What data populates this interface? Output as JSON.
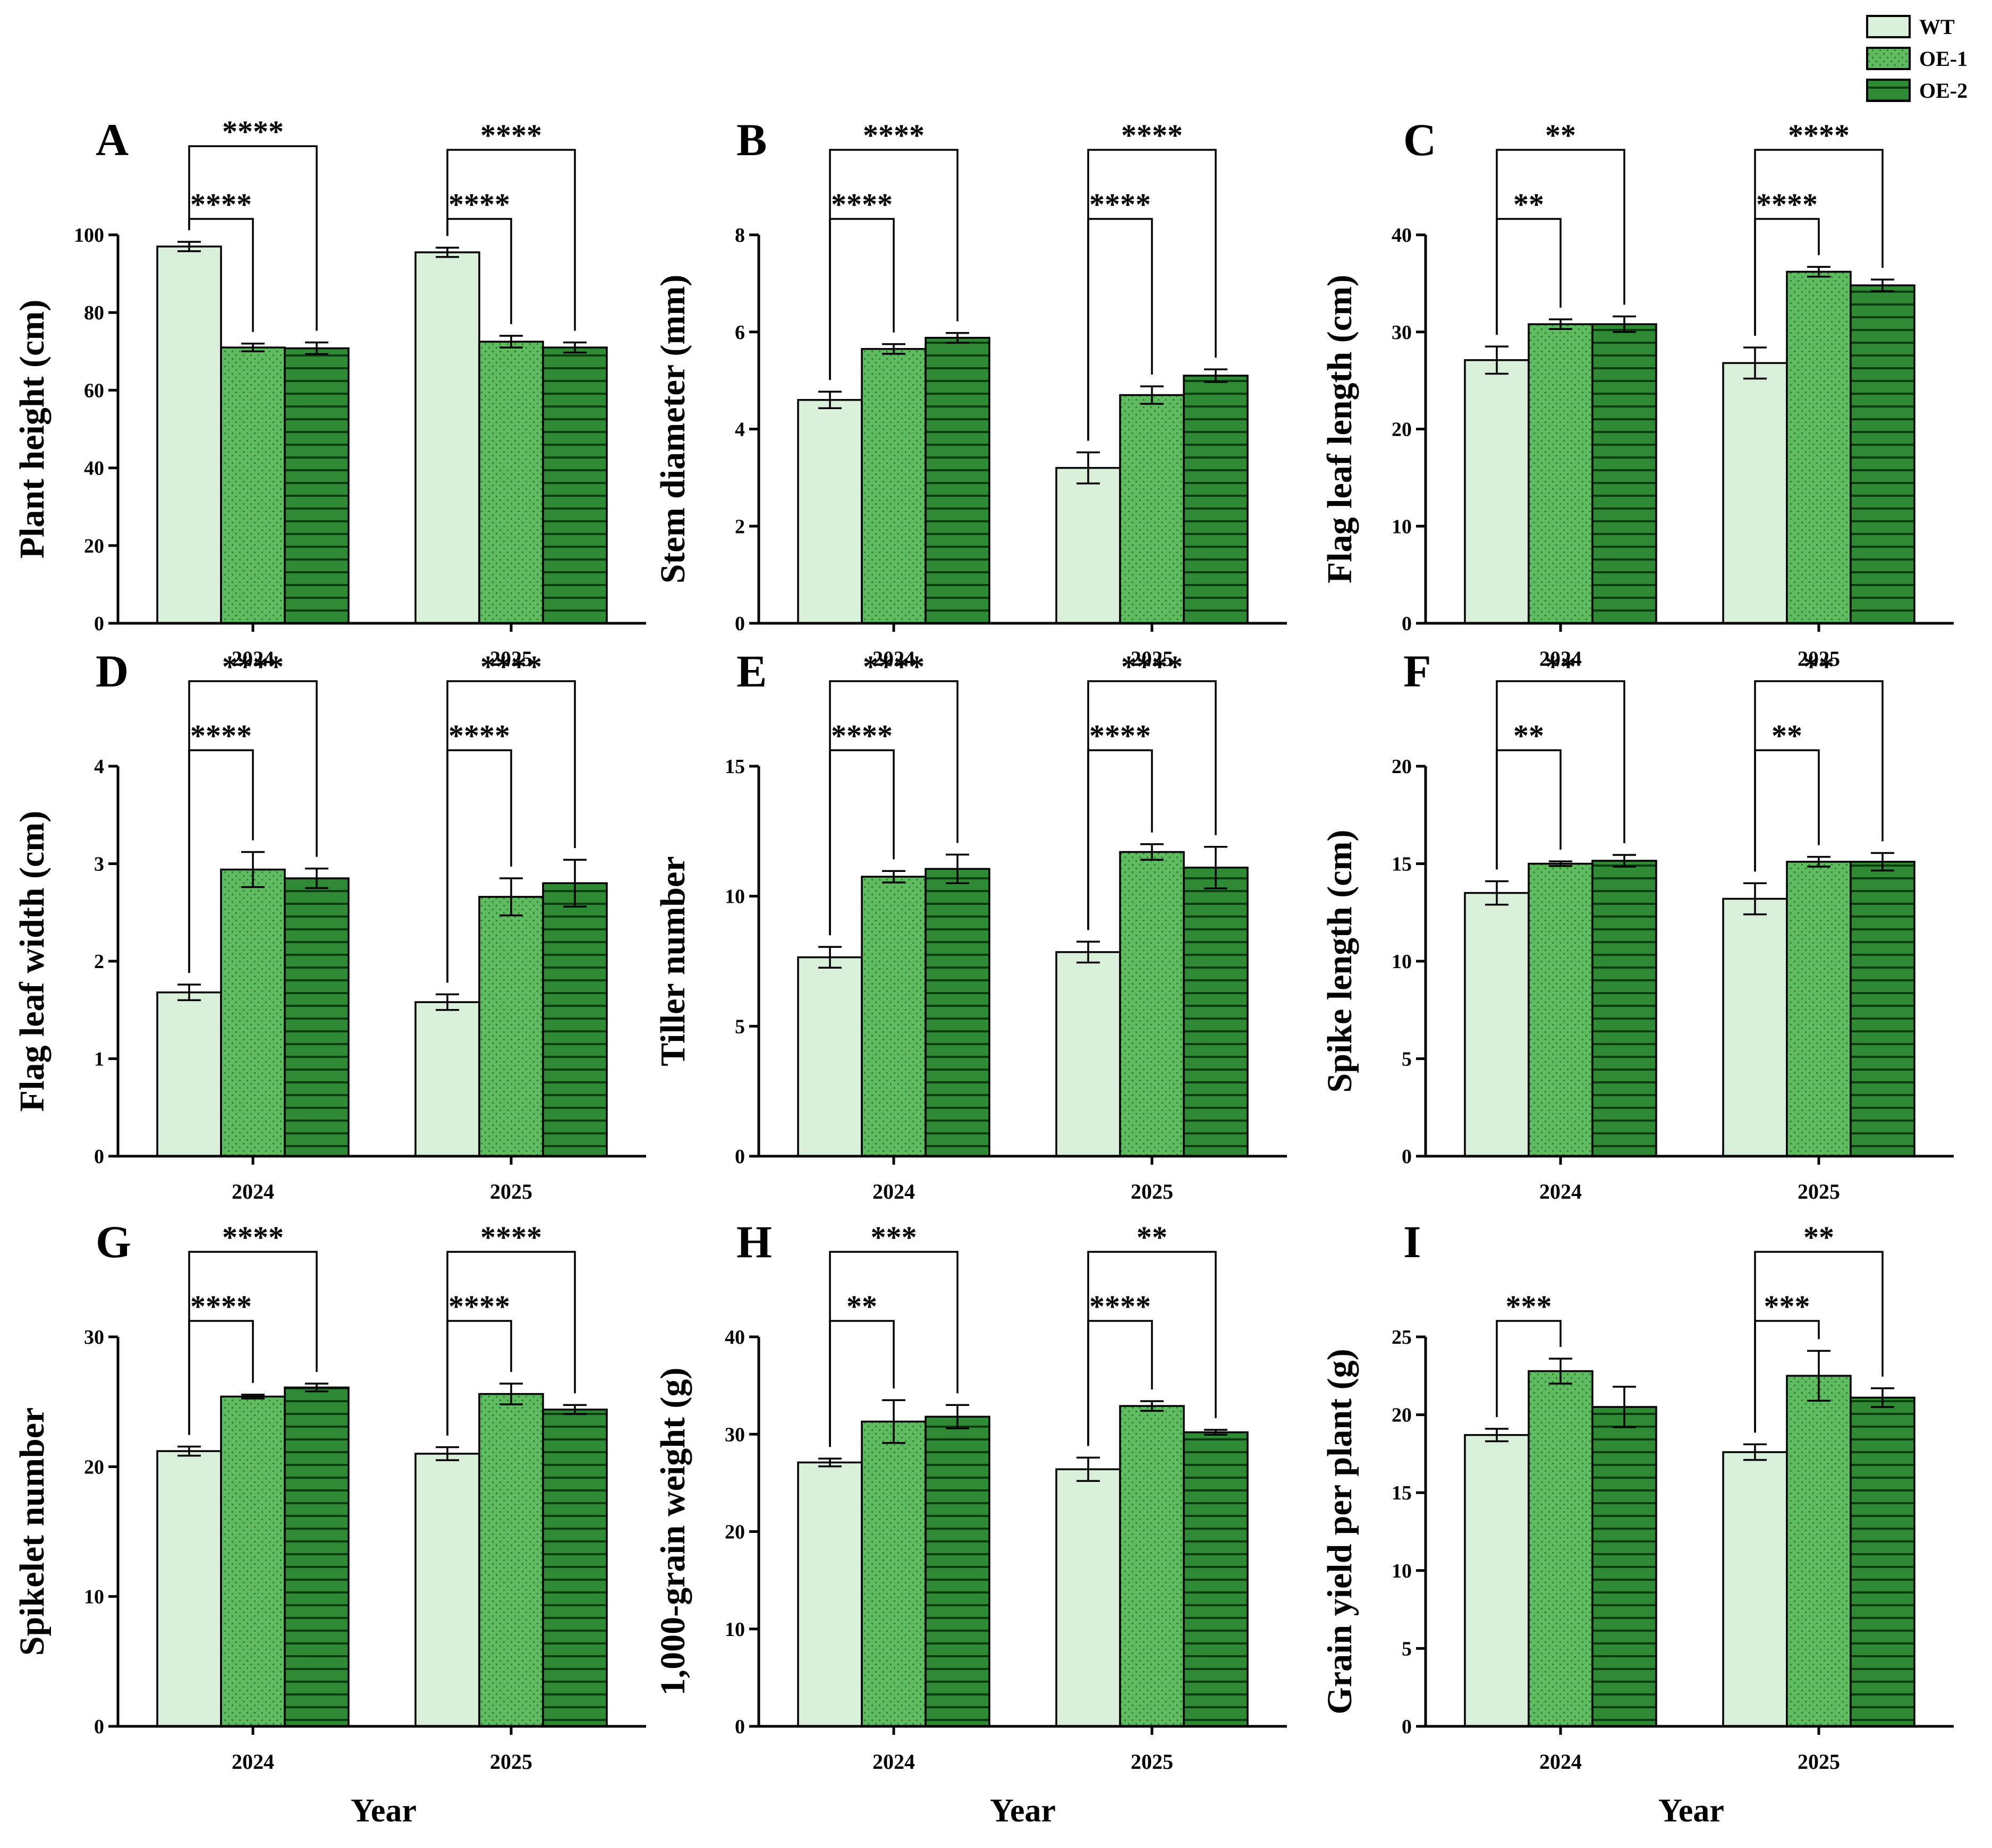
{
  "legend": [
    {
      "label": "WT",
      "color": "#d9efda",
      "pattern": "plain"
    },
    {
      "label": "OE-1",
      "color": "#5fbb5f",
      "pattern": "dots"
    },
    {
      "label": "OE-2",
      "color": "#2e8a33",
      "pattern": "hlines"
    }
  ],
  "x_axis_label": "Year",
  "chart_data": [
    {
      "panel": "A",
      "type": "bar",
      "ylabel": "Plant height (cm)",
      "ylim": [
        0,
        100
      ],
      "yticks": [
        0,
        20,
        40,
        60,
        80,
        100
      ],
      "ytick_labels": [
        "0",
        "20",
        "40",
        "60",
        "80",
        "100"
      ],
      "categories": [
        "2024",
        "2025"
      ],
      "series": [
        {
          "name": "WT",
          "values": [
            97,
            95.5
          ],
          "errors": [
            1.2,
            1.2
          ]
        },
        {
          "name": "OE-1",
          "values": [
            71,
            72.5
          ],
          "errors": [
            1,
            1.5
          ]
        },
        {
          "name": "OE-2",
          "values": [
            70.8,
            71
          ],
          "errors": [
            1.5,
            1.3
          ]
        }
      ],
      "sig": [
        {
          "cat": 0,
          "from": 0,
          "to": 1,
          "label": "****",
          "level": 0
        },
        {
          "cat": 0,
          "from": 0,
          "to": 2,
          "label": "****",
          "level": 1
        },
        {
          "cat": 1,
          "from": 0,
          "to": 1,
          "label": "****",
          "level": 0
        },
        {
          "cat": 1,
          "from": 0,
          "to": 2,
          "label": "****",
          "level": 1
        }
      ]
    },
    {
      "panel": "B",
      "type": "bar",
      "ylabel": "Stem diameter (mm)",
      "ylim": [
        0,
        8
      ],
      "yticks": [
        0,
        2,
        4,
        6,
        8
      ],
      "ytick_labels": [
        "0",
        "2",
        "4",
        "6",
        "8"
      ],
      "categories": [
        "2024",
        "2025"
      ],
      "series": [
        {
          "name": "WT",
          "values": [
            4.6,
            3.2
          ],
          "errors": [
            0.17,
            0.32
          ]
        },
        {
          "name": "OE-1",
          "values": [
            5.65,
            4.7
          ],
          "errors": [
            0.1,
            0.18
          ]
        },
        {
          "name": "OE-2",
          "values": [
            5.88,
            5.1
          ],
          "errors": [
            0.1,
            0.13
          ]
        }
      ],
      "sig": [
        {
          "cat": 0,
          "from": 0,
          "to": 1,
          "label": "****",
          "level": 0
        },
        {
          "cat": 0,
          "from": 0,
          "to": 2,
          "label": "****",
          "level": 1
        },
        {
          "cat": 1,
          "from": 0,
          "to": 1,
          "label": "****",
          "level": 0
        },
        {
          "cat": 1,
          "from": 0,
          "to": 2,
          "label": "****",
          "level": 1
        }
      ]
    },
    {
      "panel": "C",
      "type": "bar",
      "ylabel": "Flag leaf length (cm)",
      "ylim": [
        0,
        40
      ],
      "yticks": [
        0,
        10,
        20,
        30,
        40
      ],
      "ytick_labels": [
        "0",
        "10",
        "20",
        "30",
        "40"
      ],
      "categories": [
        "2024",
        "2025"
      ],
      "series": [
        {
          "name": "WT",
          "values": [
            27.1,
            26.8
          ],
          "errors": [
            1.4,
            1.6
          ]
        },
        {
          "name": "OE-1",
          "values": [
            30.8,
            36.2
          ],
          "errors": [
            0.5,
            0.5
          ]
        },
        {
          "name": "OE-2",
          "values": [
            30.8,
            34.8
          ],
          "errors": [
            0.8,
            0.6
          ]
        }
      ],
      "sig": [
        {
          "cat": 0,
          "from": 0,
          "to": 1,
          "label": "**",
          "level": 0
        },
        {
          "cat": 0,
          "from": 0,
          "to": 2,
          "label": "**",
          "level": 1
        },
        {
          "cat": 1,
          "from": 0,
          "to": 1,
          "label": "****",
          "level": 0
        },
        {
          "cat": 1,
          "from": 0,
          "to": 2,
          "label": "****",
          "level": 1
        }
      ]
    },
    {
      "panel": "D",
      "type": "bar",
      "ylabel": "Flag leaf width (cm)",
      "ylim": [
        0,
        4
      ],
      "yticks": [
        0,
        1,
        2,
        3,
        4
      ],
      "ytick_labels": [
        "0",
        "1",
        "2",
        "3",
        "4"
      ],
      "categories": [
        "2024",
        "2025"
      ],
      "series": [
        {
          "name": "WT",
          "values": [
            1.68,
            1.58
          ],
          "errors": [
            0.08,
            0.08
          ]
        },
        {
          "name": "OE-1",
          "values": [
            2.94,
            2.66
          ],
          "errors": [
            0.18,
            0.19
          ]
        },
        {
          "name": "OE-2",
          "values": [
            2.85,
            2.8
          ],
          "errors": [
            0.1,
            0.24
          ]
        }
      ],
      "sig": [
        {
          "cat": 0,
          "from": 0,
          "to": 1,
          "label": "****",
          "level": 0
        },
        {
          "cat": 0,
          "from": 0,
          "to": 2,
          "label": "****",
          "level": 1
        },
        {
          "cat": 1,
          "from": 0,
          "to": 1,
          "label": "****",
          "level": 0
        },
        {
          "cat": 1,
          "from": 0,
          "to": 2,
          "label": "****",
          "level": 1
        }
      ]
    },
    {
      "panel": "E",
      "type": "bar",
      "ylabel": "Tiller number",
      "ylim": [
        0,
        15
      ],
      "yticks": [
        0,
        5,
        10,
        15
      ],
      "ytick_labels": [
        "0",
        "5",
        "10",
        "15"
      ],
      "categories": [
        "2024",
        "2025"
      ],
      "series": [
        {
          "name": "WT",
          "values": [
            7.65,
            7.85
          ],
          "errors": [
            0.4,
            0.4
          ]
        },
        {
          "name": "OE-1",
          "values": [
            10.75,
            11.7
          ],
          "errors": [
            0.22,
            0.3
          ]
        },
        {
          "name": "OE-2",
          "values": [
            11.05,
            11.1
          ],
          "errors": [
            0.55,
            0.8
          ]
        }
      ],
      "sig": [
        {
          "cat": 0,
          "from": 0,
          "to": 1,
          "label": "****",
          "level": 0
        },
        {
          "cat": 0,
          "from": 0,
          "to": 2,
          "label": "****",
          "level": 1
        },
        {
          "cat": 1,
          "from": 0,
          "to": 1,
          "label": "****",
          "level": 0
        },
        {
          "cat": 1,
          "from": 0,
          "to": 2,
          "label": "****",
          "level": 1
        }
      ]
    },
    {
      "panel": "F",
      "type": "bar",
      "ylabel": "Spike length (cm)",
      "ylim": [
        0,
        20
      ],
      "yticks": [
        0,
        5,
        10,
        15,
        20
      ],
      "ytick_labels": [
        "0",
        "5",
        "10",
        "15",
        "20"
      ],
      "categories": [
        "2024",
        "2025"
      ],
      "series": [
        {
          "name": "WT",
          "values": [
            13.5,
            13.2
          ],
          "errors": [
            0.6,
            0.8
          ]
        },
        {
          "name": "OE-1",
          "values": [
            15.0,
            15.1
          ],
          "errors": [
            0.12,
            0.25
          ]
        },
        {
          "name": "OE-2",
          "values": [
            15.15,
            15.1
          ],
          "errors": [
            0.3,
            0.45
          ]
        }
      ],
      "sig": [
        {
          "cat": 0,
          "from": 0,
          "to": 1,
          "label": "**",
          "level": 0
        },
        {
          "cat": 0,
          "from": 0,
          "to": 2,
          "label": "**",
          "level": 1
        },
        {
          "cat": 1,
          "from": 0,
          "to": 1,
          "label": "**",
          "level": 0
        },
        {
          "cat": 1,
          "from": 0,
          "to": 2,
          "label": "**",
          "level": 1
        }
      ]
    },
    {
      "panel": "G",
      "type": "bar",
      "ylabel": "Spikelet number",
      "ylim": [
        0,
        30
      ],
      "yticks": [
        0,
        10,
        20,
        30
      ],
      "ytick_labels": [
        "0",
        "10",
        "20",
        "30"
      ],
      "categories": [
        "2024",
        "2025"
      ],
      "series": [
        {
          "name": "WT",
          "values": [
            21.2,
            21.0
          ],
          "errors": [
            0.35,
            0.5
          ]
        },
        {
          "name": "OE-1",
          "values": [
            25.4,
            25.6
          ],
          "errors": [
            0.15,
            0.8
          ]
        },
        {
          "name": "OE-2",
          "values": [
            26.1,
            24.4
          ],
          "errors": [
            0.3,
            0.35
          ]
        }
      ],
      "sig": [
        {
          "cat": 0,
          "from": 0,
          "to": 1,
          "label": "****",
          "level": 0
        },
        {
          "cat": 0,
          "from": 0,
          "to": 2,
          "label": "****",
          "level": 1
        },
        {
          "cat": 1,
          "from": 0,
          "to": 1,
          "label": "****",
          "level": 0
        },
        {
          "cat": 1,
          "from": 0,
          "to": 2,
          "label": "****",
          "level": 1
        }
      ]
    },
    {
      "panel": "H",
      "type": "bar",
      "ylabel": "1,000-grain weight (g)",
      "ylim": [
        0,
        40
      ],
      "yticks": [
        0,
        10,
        20,
        30,
        40
      ],
      "ytick_labels": [
        "0",
        "10",
        "20",
        "30",
        "40"
      ],
      "categories": [
        "2024",
        "2025"
      ],
      "series": [
        {
          "name": "WT",
          "values": [
            27.1,
            26.4
          ],
          "errors": [
            0.4,
            1.2
          ]
        },
        {
          "name": "OE-1",
          "values": [
            31.3,
            32.9
          ],
          "errors": [
            2.2,
            0.5
          ]
        },
        {
          "name": "OE-2",
          "values": [
            31.8,
            30.2
          ],
          "errors": [
            1.2,
            0.25
          ]
        }
      ],
      "sig": [
        {
          "cat": 0,
          "from": 0,
          "to": 1,
          "label": "**",
          "level": 0
        },
        {
          "cat": 0,
          "from": 0,
          "to": 2,
          "label": "***",
          "level": 1
        },
        {
          "cat": 1,
          "from": 0,
          "to": 1,
          "label": "****",
          "level": 0
        },
        {
          "cat": 1,
          "from": 0,
          "to": 2,
          "label": "**",
          "level": 1
        }
      ]
    },
    {
      "panel": "I",
      "type": "bar",
      "ylabel": "Grain yield per plant (g)",
      "ylim": [
        0,
        25
      ],
      "yticks": [
        0,
        5,
        10,
        15,
        20,
        25
      ],
      "ytick_labels": [
        "0",
        "5",
        "10",
        "15",
        "20",
        "25"
      ],
      "categories": [
        "2024",
        "2025"
      ],
      "series": [
        {
          "name": "WT",
          "values": [
            18.7,
            17.6
          ],
          "errors": [
            0.4,
            0.5
          ]
        },
        {
          "name": "OE-1",
          "values": [
            22.8,
            22.5
          ],
          "errors": [
            0.8,
            1.6
          ]
        },
        {
          "name": "OE-2",
          "values": [
            20.5,
            21.1
          ],
          "errors": [
            1.3,
            0.6
          ]
        }
      ],
      "sig": [
        {
          "cat": 0,
          "from": 0,
          "to": 1,
          "label": "***",
          "level": 0
        },
        {
          "cat": 1,
          "from": 0,
          "to": 1,
          "label": "***",
          "level": 0
        },
        {
          "cat": 1,
          "from": 0,
          "to": 2,
          "label": "**",
          "level": 1
        }
      ]
    }
  ]
}
